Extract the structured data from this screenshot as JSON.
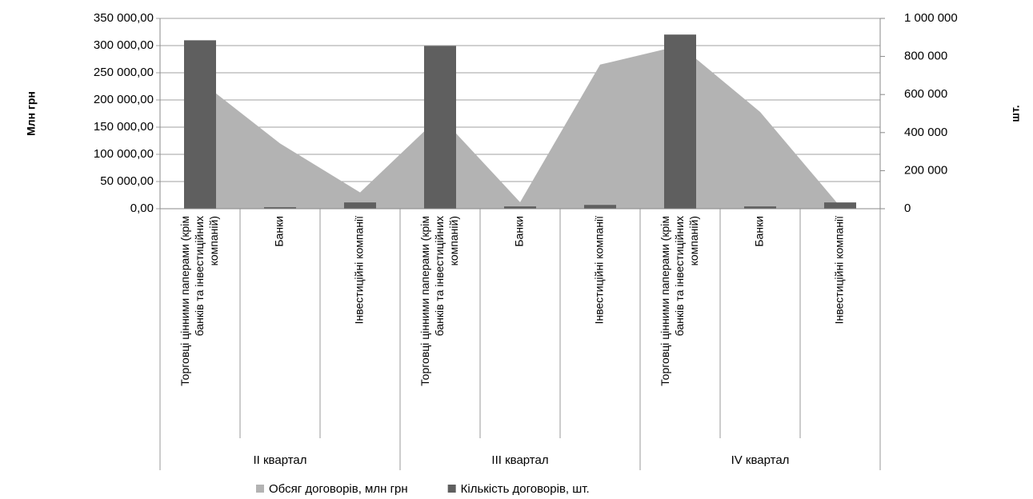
{
  "chart_data": {
    "type": "combo",
    "categories": [
      "Торговці цінними паперами (крім банків та інвестиційних компаній)",
      "Банки",
      "Інвестиційні компанії",
      "Торговці цінними паперами (крім банків та інвестиційних компаній)",
      "Банки",
      "Інвестиційні компанії",
      "Торговці цінними паперами (крім банків та інвестиційних компаній)",
      "Банки",
      "Інвестиційні компанії"
    ],
    "groups": [
      "II квартал",
      "III квартал",
      "IV квартал"
    ],
    "y_label": "Млн грн",
    "y2_label": "шт.",
    "ylim": [
      0,
      350000
    ],
    "yticks": [
      {
        "value": 0,
        "label": "0,00"
      },
      {
        "value": 50000,
        "label": "50 000,00"
      },
      {
        "value": 100000,
        "label": "100 000,00"
      },
      {
        "value": 150000,
        "label": "150 000,00"
      },
      {
        "value": 200000,
        "label": "200 000,00"
      },
      {
        "value": 250000,
        "label": "250 000,00"
      },
      {
        "value": 300000,
        "label": "300 000,00"
      },
      {
        "value": 350000,
        "label": "350 000,00"
      }
    ],
    "y2lim": [
      0,
      1000000
    ],
    "y2ticks": [
      0,
      {
        "value": 200000,
        "label": "200 000"
      },
      {
        "value": 400000,
        "label": "400 000"
      },
      {
        "value": 600000,
        "label": "600 000"
      },
      {
        "value": 800000,
        "label": "800 000"
      },
      {
        "value": 1000000,
        "label": "1 000 000"
      }
    ],
    "grid": true,
    "legend": "bottom",
    "series": [
      {
        "name": "Обсяг договорів, млн грн",
        "type": "area",
        "color": "#b3b3b3",
        "values": [
          235000,
          120000,
          30000,
          170000,
          12000,
          265000,
          300000,
          178000,
          4000
        ]
      },
      {
        "name": "Кількість договорів, шт.",
        "type": "bar",
        "axis": "y2",
        "color": "#5f5f5f",
        "values": [
          885000,
          8000,
          33000,
          855000,
          12000,
          20000,
          915000,
          12000,
          33000
        ]
      }
    ]
  }
}
